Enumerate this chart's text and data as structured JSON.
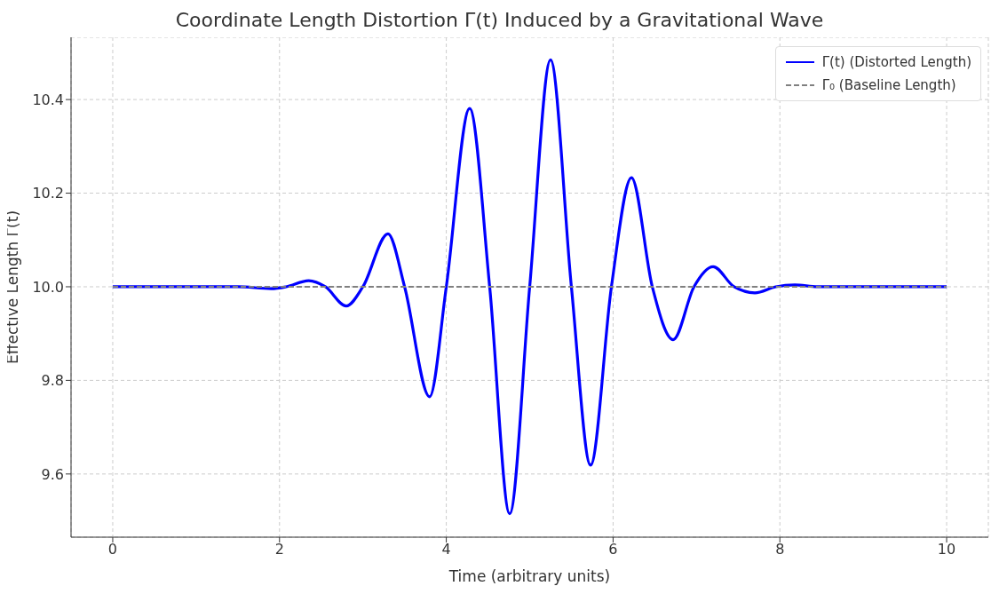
{
  "chart_data": {
    "type": "line",
    "title": "Coordinate Length Distortion Γ(t) Induced by a Gravitational Wave",
    "xlabel": "Time (arbitrary units)",
    "ylabel": "Effective Length Γ(t)",
    "xlim": [
      -0.5,
      10.5
    ],
    "xticks": [
      0,
      2,
      4,
      6,
      8,
      10
    ],
    "ylim": [
      9.465,
      10.533
    ],
    "yticks": [
      9.6,
      9.8,
      {
        "value": 10,
        "label": "10.0"
      },
      10.2,
      10.4
    ],
    "grid": true,
    "legend": "top right",
    "marker": "none",
    "series": [
      {
        "name": "Γ(t) (Distorted Length)",
        "color": "#0000ff",
        "line_style": "solid",
        "x": [
          0,
          0.5,
          1,
          1.5,
          1.9,
          2.08,
          2.35,
          2.55,
          2.8,
          3.0,
          3.3,
          3.5,
          3.8,
          4.0,
          4.28,
          4.52,
          4.76,
          5.0,
          5.25,
          5.5,
          5.73,
          5.98,
          6.22,
          6.47,
          6.72,
          6.97,
          7.2,
          7.45,
          7.7,
          7.95,
          8.18,
          8.45,
          9,
          9.5,
          10
        ],
        "values": [
          10,
          10,
          10,
          10,
          9.996,
          10,
          10.013,
          10,
          9.959,
          10,
          10.113,
          10,
          9.765,
          10,
          10.381,
          10,
          9.515,
          10,
          10.485,
          10,
          9.619,
          10,
          10.233,
          10,
          9.887,
          10,
          10.043,
          10,
          9.987,
          10,
          10.004,
          10,
          10,
          10,
          10
        ]
      },
      {
        "name": "Γ₀ (Baseline Length)",
        "color": "#808080",
        "line_style": "dashed",
        "x": [
          0,
          10
        ],
        "values": [
          10,
          10
        ]
      }
    ]
  }
}
